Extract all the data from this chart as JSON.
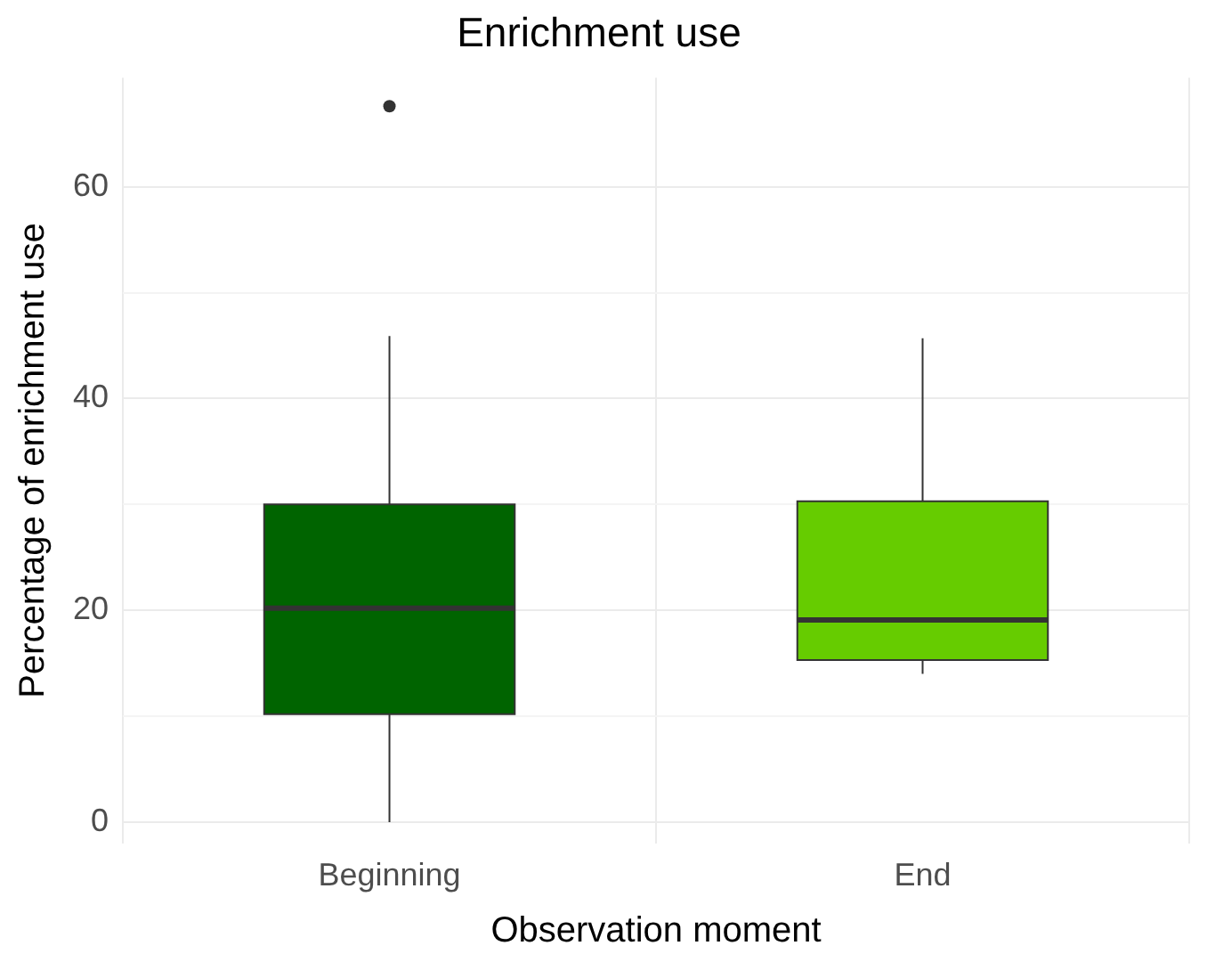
{
  "chart_data": {
    "type": "box",
    "title": "Enrichment use",
    "xlabel": "Observation moment",
    "ylabel": "Percentage of enrichment use",
    "categories": [
      "Beginning",
      "End"
    ],
    "colors": [
      "#006400",
      "#66cc00"
    ],
    "boxes": [
      {
        "low": 0,
        "q1": 10.2,
        "median": 20.2,
        "q3": 30,
        "high": 45.9,
        "outliers": [
          67.6
        ]
      },
      {
        "low": 14,
        "q1": 15.3,
        "median": 19.1,
        "q3": 30.3,
        "high": 45.7
      }
    ],
    "ylim": [
      -2,
      70.3
    ],
    "yticks": [
      0,
      {
        "value": 10,
        "label": null
      },
      20,
      {
        "value": 30,
        "label": null
      },
      40,
      {
        "value": 50,
        "label": null
      },
      60
    ],
    "grid": true
  }
}
